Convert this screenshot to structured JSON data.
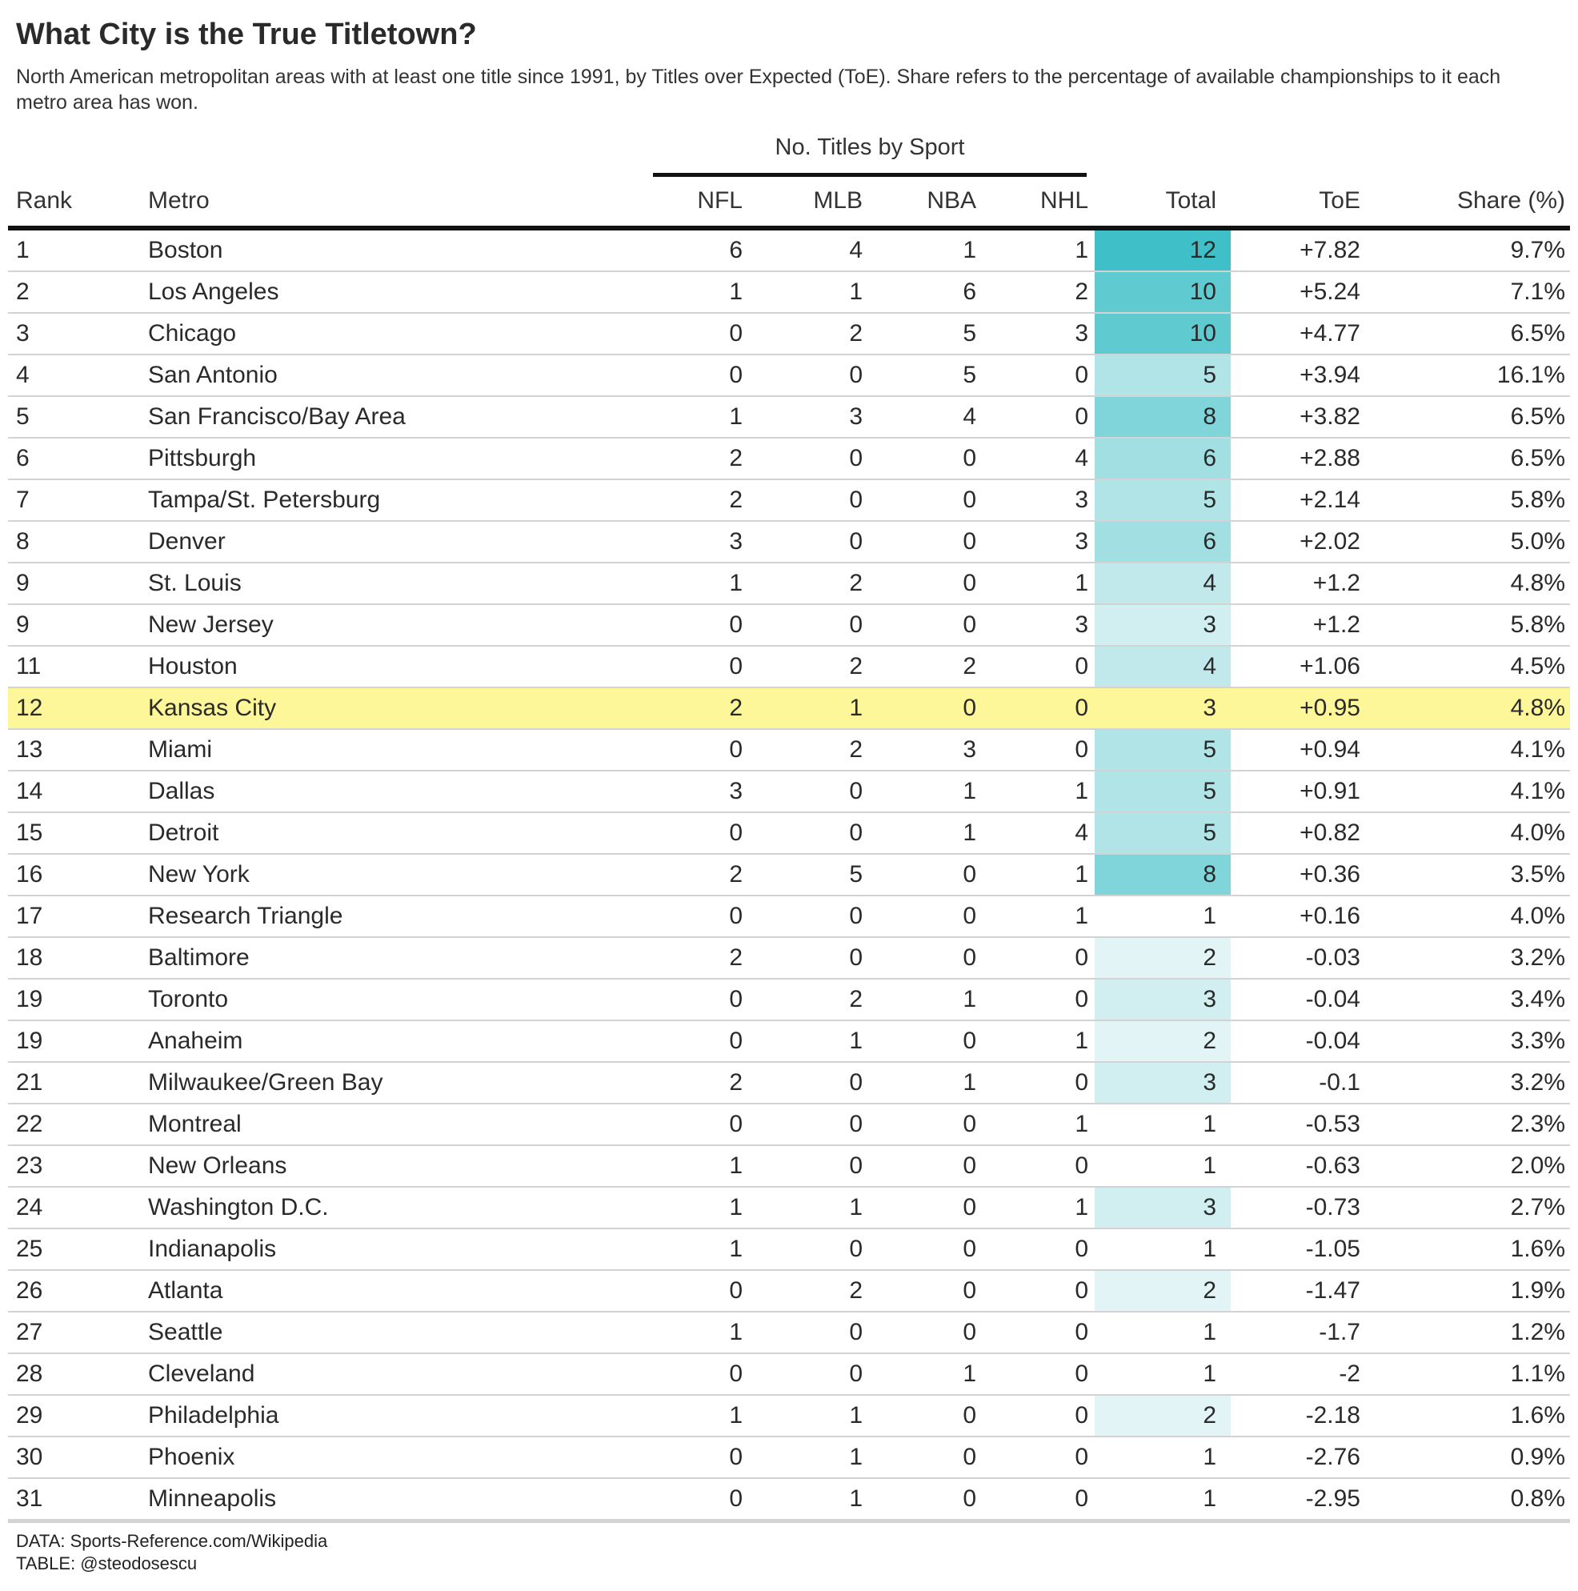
{
  "chart_data": {
    "type": "table",
    "title": "What City is the True Titletown?",
    "subtitle": "North American metropolitan areas with at least one title since 1991, by Titles over Expected (ToE). Share refers to the percentage of available championships to it each metro area has won.",
    "spanner_label": "No. Titles by Sport",
    "columns": [
      "Rank",
      "Metro",
      "NFL",
      "MLB",
      "NBA",
      "NHL",
      "Total",
      "ToE",
      "Share (%)"
    ],
    "highlight_metro": "Kansas City",
    "highlight_color": "#fdf79a",
    "total_color_scale": [
      "#f2f9f9",
      "#3fc0c8"
    ],
    "rows": [
      {
        "rank": "1",
        "metro": "Boston",
        "nfl": 6,
        "mlb": 4,
        "nba": 1,
        "nhl": 1,
        "total": 12,
        "toe": "+7.82",
        "share": "9.7%"
      },
      {
        "rank": "2",
        "metro": "Los Angeles",
        "nfl": 1,
        "mlb": 1,
        "nba": 6,
        "nhl": 2,
        "total": 10,
        "toe": "+5.24",
        "share": "7.1%"
      },
      {
        "rank": "3",
        "metro": "Chicago",
        "nfl": 0,
        "mlb": 2,
        "nba": 5,
        "nhl": 3,
        "total": 10,
        "toe": "+4.77",
        "share": "6.5%"
      },
      {
        "rank": "4",
        "metro": "San Antonio",
        "nfl": 0,
        "mlb": 0,
        "nba": 5,
        "nhl": 0,
        "total": 5,
        "toe": "+3.94",
        "share": "16.1%"
      },
      {
        "rank": "5",
        "metro": "San Francisco/Bay Area",
        "nfl": 1,
        "mlb": 3,
        "nba": 4,
        "nhl": 0,
        "total": 8,
        "toe": "+3.82",
        "share": "6.5%"
      },
      {
        "rank": "6",
        "metro": "Pittsburgh",
        "nfl": 2,
        "mlb": 0,
        "nba": 0,
        "nhl": 4,
        "total": 6,
        "toe": "+2.88",
        "share": "6.5%"
      },
      {
        "rank": "7",
        "metro": "Tampa/St. Petersburg",
        "nfl": 2,
        "mlb": 0,
        "nba": 0,
        "nhl": 3,
        "total": 5,
        "toe": "+2.14",
        "share": "5.8%"
      },
      {
        "rank": "8",
        "metro": "Denver",
        "nfl": 3,
        "mlb": 0,
        "nba": 0,
        "nhl": 3,
        "total": 6,
        "toe": "+2.02",
        "share": "5.0%"
      },
      {
        "rank": "9",
        "metro": "St. Louis",
        "nfl": 1,
        "mlb": 2,
        "nba": 0,
        "nhl": 1,
        "total": 4,
        "toe": "+1.2",
        "share": "4.8%"
      },
      {
        "rank": "9",
        "metro": "New Jersey",
        "nfl": 0,
        "mlb": 0,
        "nba": 0,
        "nhl": 3,
        "total": 3,
        "toe": "+1.2",
        "share": "5.8%"
      },
      {
        "rank": "11",
        "metro": "Houston",
        "nfl": 0,
        "mlb": 2,
        "nba": 2,
        "nhl": 0,
        "total": 4,
        "toe": "+1.06",
        "share": "4.5%"
      },
      {
        "rank": "12",
        "metro": "Kansas City",
        "nfl": 2,
        "mlb": 1,
        "nba": 0,
        "nhl": 0,
        "total": 3,
        "toe": "+0.95",
        "share": "4.8%"
      },
      {
        "rank": "13",
        "metro": "Miami",
        "nfl": 0,
        "mlb": 2,
        "nba": 3,
        "nhl": 0,
        "total": 5,
        "toe": "+0.94",
        "share": "4.1%"
      },
      {
        "rank": "14",
        "metro": "Dallas",
        "nfl": 3,
        "mlb": 0,
        "nba": 1,
        "nhl": 1,
        "total": 5,
        "toe": "+0.91",
        "share": "4.1%"
      },
      {
        "rank": "15",
        "metro": "Detroit",
        "nfl": 0,
        "mlb": 0,
        "nba": 1,
        "nhl": 4,
        "total": 5,
        "toe": "+0.82",
        "share": "4.0%"
      },
      {
        "rank": "16",
        "metro": "New York",
        "nfl": 2,
        "mlb": 5,
        "nba": 0,
        "nhl": 1,
        "total": 8,
        "toe": "+0.36",
        "share": "3.5%"
      },
      {
        "rank": "17",
        "metro": "Research Triangle",
        "nfl": 0,
        "mlb": 0,
        "nba": 0,
        "nhl": 1,
        "total": 1,
        "toe": "+0.16",
        "share": "4.0%"
      },
      {
        "rank": "18",
        "metro": "Baltimore",
        "nfl": 2,
        "mlb": 0,
        "nba": 0,
        "nhl": 0,
        "total": 2,
        "toe": "-0.03",
        "share": "3.2%"
      },
      {
        "rank": "19",
        "metro": "Toronto",
        "nfl": 0,
        "mlb": 2,
        "nba": 1,
        "nhl": 0,
        "total": 3,
        "toe": "-0.04",
        "share": "3.4%"
      },
      {
        "rank": "19",
        "metro": "Anaheim",
        "nfl": 0,
        "mlb": 1,
        "nba": 0,
        "nhl": 1,
        "total": 2,
        "toe": "-0.04",
        "share": "3.3%"
      },
      {
        "rank": "21",
        "metro": "Milwaukee/Green Bay",
        "nfl": 2,
        "mlb": 0,
        "nba": 1,
        "nhl": 0,
        "total": 3,
        "toe": "-0.1",
        "share": "3.2%"
      },
      {
        "rank": "22",
        "metro": "Montreal",
        "nfl": 0,
        "mlb": 0,
        "nba": 0,
        "nhl": 1,
        "total": 1,
        "toe": "-0.53",
        "share": "2.3%"
      },
      {
        "rank": "23",
        "metro": "New Orleans",
        "nfl": 1,
        "mlb": 0,
        "nba": 0,
        "nhl": 0,
        "total": 1,
        "toe": "-0.63",
        "share": "2.0%"
      },
      {
        "rank": "24",
        "metro": "Washington D.C.",
        "nfl": 1,
        "mlb": 1,
        "nba": 0,
        "nhl": 1,
        "total": 3,
        "toe": "-0.73",
        "share": "2.7%"
      },
      {
        "rank": "25",
        "metro": "Indianapolis",
        "nfl": 1,
        "mlb": 0,
        "nba": 0,
        "nhl": 0,
        "total": 1,
        "toe": "-1.05",
        "share": "1.6%"
      },
      {
        "rank": "26",
        "metro": "Atlanta",
        "nfl": 0,
        "mlb": 2,
        "nba": 0,
        "nhl": 0,
        "total": 2,
        "toe": "-1.47",
        "share": "1.9%"
      },
      {
        "rank": "27",
        "metro": "Seattle",
        "nfl": 1,
        "mlb": 0,
        "nba": 0,
        "nhl": 0,
        "total": 1,
        "toe": "-1.7",
        "share": "1.2%"
      },
      {
        "rank": "28",
        "metro": "Cleveland",
        "nfl": 0,
        "mlb": 0,
        "nba": 1,
        "nhl": 0,
        "total": 1,
        "toe": "-2",
        "share": "1.1%"
      },
      {
        "rank": "29",
        "metro": "Philadelphia",
        "nfl": 1,
        "mlb": 1,
        "nba": 0,
        "nhl": 0,
        "total": 2,
        "toe": "-2.18",
        "share": "1.6%"
      },
      {
        "rank": "30",
        "metro": "Phoenix",
        "nfl": 0,
        "mlb": 1,
        "nba": 0,
        "nhl": 0,
        "total": 1,
        "toe": "-2.76",
        "share": "0.9%"
      },
      {
        "rank": "31",
        "metro": "Minneapolis",
        "nfl": 0,
        "mlb": 1,
        "nba": 0,
        "nhl": 0,
        "total": 1,
        "toe": "-2.95",
        "share": "0.8%"
      }
    ]
  },
  "source": {
    "data_line": "DATA: Sports-Reference.com/Wikipedia",
    "table_line": "TABLE: @steodosescu"
  }
}
